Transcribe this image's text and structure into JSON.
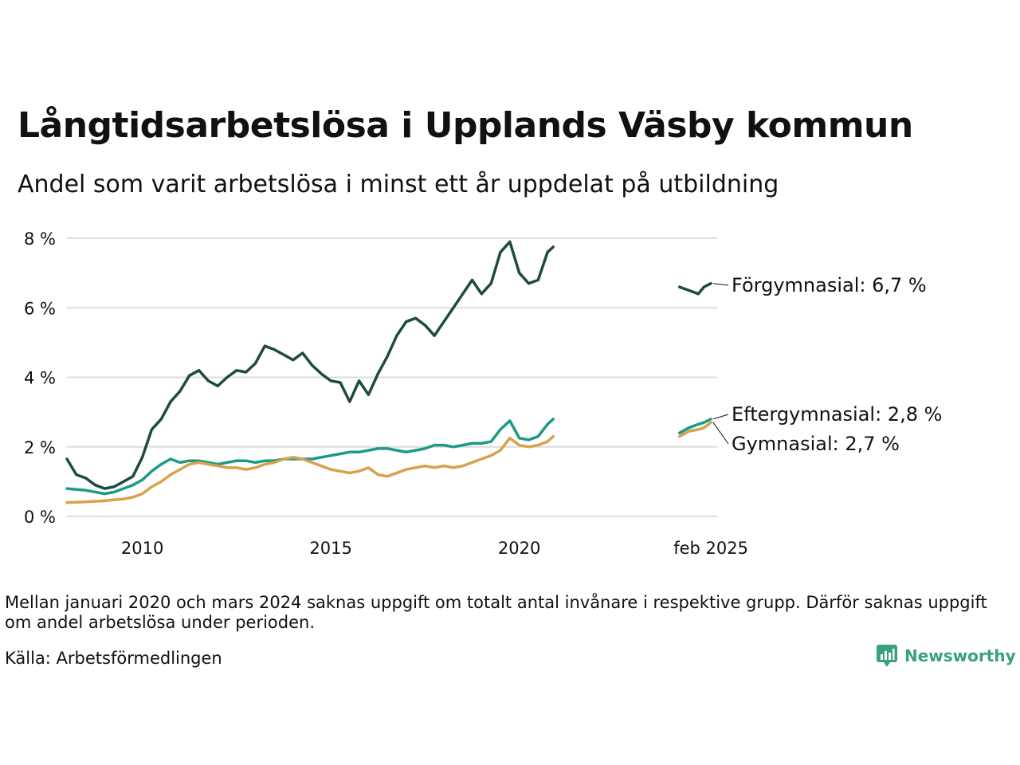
{
  "title": "Långtidsarbetslösa i Upplands Väsby kommun",
  "subtitle": "Andel som varit arbetslösa i minst ett år uppdelat på utbildning",
  "footnote": "Mellan januari 2020 och mars 2024 saknas uppgift om totalt antal invånare i respektive grupp. Därför saknas uppgift om andel arbetslösa under perioden.",
  "source": "Källa: Arbetsförmedlingen",
  "brand": "Newsworthy",
  "colors": {
    "forgymnasial": "#1e4a42",
    "eftergymnasial": "#1c9a86",
    "gymnasial": "#d7a24c",
    "grid": "#dcdcdc",
    "brand": "#3aa081"
  },
  "chart_data": {
    "type": "line",
    "x_range": [
      2008.0,
      2025.25
    ],
    "ylim": [
      0,
      8
    ],
    "y_ticks": [
      0,
      2,
      4,
      6,
      8
    ],
    "y_tick_labels": [
      "0 %",
      "2 %",
      "4 %",
      "6 %",
      "8 %"
    ],
    "x_ticks": [
      2010,
      2015,
      2020,
      2025.083
    ],
    "x_tick_labels": [
      "2010",
      "2015",
      "2020",
      "feb 2025"
    ],
    "grid": "horizontal",
    "series": [
      {
        "name": "Förgymnasial",
        "color_key": "forgymnasial",
        "end_label": "Förgymnasial: 6,7 %",
        "segments": [
          [
            [
              2008.0,
              1.65
            ],
            [
              2008.25,
              1.2
            ],
            [
              2008.5,
              1.1
            ],
            [
              2008.75,
              0.9
            ],
            [
              2009.0,
              0.8
            ],
            [
              2009.25,
              0.85
            ],
            [
              2009.5,
              1.0
            ],
            [
              2009.75,
              1.15
            ],
            [
              2010.0,
              1.7
            ],
            [
              2010.25,
              2.5
            ],
            [
              2010.5,
              2.8
            ],
            [
              2010.75,
              3.3
            ],
            [
              2011.0,
              3.6
            ],
            [
              2011.25,
              4.05
            ],
            [
              2011.5,
              4.2
            ],
            [
              2011.75,
              3.9
            ],
            [
              2012.0,
              3.75
            ],
            [
              2012.25,
              4.0
            ],
            [
              2012.5,
              4.2
            ],
            [
              2012.75,
              4.15
            ],
            [
              2013.0,
              4.4
            ],
            [
              2013.25,
              4.9
            ],
            [
              2013.5,
              4.8
            ],
            [
              2013.75,
              4.65
            ],
            [
              2014.0,
              4.5
            ],
            [
              2014.25,
              4.7
            ],
            [
              2014.5,
              4.35
            ],
            [
              2014.75,
              4.1
            ],
            [
              2015.0,
              3.9
            ],
            [
              2015.25,
              3.85
            ],
            [
              2015.5,
              3.3
            ],
            [
              2015.75,
              3.9
            ],
            [
              2016.0,
              3.5
            ],
            [
              2016.25,
              4.1
            ],
            [
              2016.5,
              4.6
            ],
            [
              2016.75,
              5.2
            ],
            [
              2017.0,
              5.6
            ],
            [
              2017.25,
              5.7
            ],
            [
              2017.5,
              5.5
            ],
            [
              2017.75,
              5.2
            ],
            [
              2018.0,
              5.6
            ],
            [
              2018.25,
              6.0
            ],
            [
              2018.5,
              6.4
            ],
            [
              2018.75,
              6.8
            ],
            [
              2019.0,
              6.4
            ],
            [
              2019.25,
              6.7
            ],
            [
              2019.5,
              7.6
            ],
            [
              2019.75,
              7.9
            ],
            [
              2020.0,
              7.0
            ],
            [
              2020.25,
              6.7
            ],
            [
              2020.5,
              6.8
            ],
            [
              2020.75,
              7.6
            ],
            [
              2020.9,
              7.75
            ]
          ],
          [
            [
              2024.25,
              6.6
            ],
            [
              2024.5,
              6.5
            ],
            [
              2024.75,
              6.4
            ],
            [
              2024.9,
              6.6
            ],
            [
              2025.08,
              6.7
            ]
          ]
        ]
      },
      {
        "name": "Eftergymnasial",
        "color_key": "eftergymnasial",
        "end_label": "Eftergymnasial: 2,8 %",
        "segments": [
          [
            [
              2008.0,
              0.8
            ],
            [
              2008.5,
              0.75
            ],
            [
              2009.0,
              0.65
            ],
            [
              2009.25,
              0.7
            ],
            [
              2009.5,
              0.8
            ],
            [
              2009.75,
              0.9
            ],
            [
              2010.0,
              1.05
            ],
            [
              2010.25,
              1.3
            ],
            [
              2010.5,
              1.5
            ],
            [
              2010.75,
              1.65
            ],
            [
              2011.0,
              1.55
            ],
            [
              2011.25,
              1.6
            ],
            [
              2011.5,
              1.6
            ],
            [
              2011.75,
              1.55
            ],
            [
              2012.0,
              1.5
            ],
            [
              2012.25,
              1.55
            ],
            [
              2012.5,
              1.6
            ],
            [
              2012.75,
              1.6
            ],
            [
              2013.0,
              1.55
            ],
            [
              2013.25,
              1.6
            ],
            [
              2013.5,
              1.6
            ],
            [
              2013.75,
              1.65
            ],
            [
              2014.0,
              1.65
            ],
            [
              2014.5,
              1.65
            ],
            [
              2014.75,
              1.7
            ],
            [
              2015.0,
              1.75
            ],
            [
              2015.25,
              1.8
            ],
            [
              2015.5,
              1.85
            ],
            [
              2015.75,
              1.85
            ],
            [
              2016.0,
              1.9
            ],
            [
              2016.25,
              1.95
            ],
            [
              2016.5,
              1.95
            ],
            [
              2016.75,
              1.9
            ],
            [
              2017.0,
              1.85
            ],
            [
              2017.25,
              1.9
            ],
            [
              2017.5,
              1.95
            ],
            [
              2017.75,
              2.05
            ],
            [
              2018.0,
              2.05
            ],
            [
              2018.25,
              2.0
            ],
            [
              2018.5,
              2.05
            ],
            [
              2018.75,
              2.1
            ],
            [
              2019.0,
              2.1
            ],
            [
              2019.25,
              2.15
            ],
            [
              2019.5,
              2.5
            ],
            [
              2019.75,
              2.75
            ],
            [
              2020.0,
              2.25
            ],
            [
              2020.25,
              2.2
            ],
            [
              2020.5,
              2.3
            ],
            [
              2020.75,
              2.65
            ],
            [
              2020.9,
              2.8
            ]
          ],
          [
            [
              2024.25,
              2.4
            ],
            [
              2024.5,
              2.55
            ],
            [
              2024.75,
              2.65
            ],
            [
              2024.9,
              2.7
            ],
            [
              2025.08,
              2.8
            ]
          ]
        ]
      },
      {
        "name": "Gymnasial",
        "color_key": "gymnasial",
        "end_label": "Gymnasial: 2,7 %",
        "segments": [
          [
            [
              2008.0,
              0.4
            ],
            [
              2008.5,
              0.42
            ],
            [
              2009.0,
              0.45
            ],
            [
              2009.25,
              0.48
            ],
            [
              2009.5,
              0.5
            ],
            [
              2009.75,
              0.55
            ],
            [
              2010.0,
              0.65
            ],
            [
              2010.25,
              0.85
            ],
            [
              2010.5,
              1.0
            ],
            [
              2010.75,
              1.2
            ],
            [
              2011.0,
              1.35
            ],
            [
              2011.25,
              1.5
            ],
            [
              2011.5,
              1.55
            ],
            [
              2011.75,
              1.5
            ],
            [
              2012.0,
              1.45
            ],
            [
              2012.25,
              1.4
            ],
            [
              2012.5,
              1.4
            ],
            [
              2012.75,
              1.35
            ],
            [
              2013.0,
              1.4
            ],
            [
              2013.25,
              1.5
            ],
            [
              2013.5,
              1.55
            ],
            [
              2013.75,
              1.65
            ],
            [
              2014.0,
              1.7
            ],
            [
              2014.25,
              1.65
            ],
            [
              2014.5,
              1.55
            ],
            [
              2014.75,
              1.45
            ],
            [
              2015.0,
              1.35
            ],
            [
              2015.25,
              1.3
            ],
            [
              2015.5,
              1.25
            ],
            [
              2015.75,
              1.3
            ],
            [
              2016.0,
              1.4
            ],
            [
              2016.25,
              1.2
            ],
            [
              2016.5,
              1.15
            ],
            [
              2016.75,
              1.25
            ],
            [
              2017.0,
              1.35
            ],
            [
              2017.25,
              1.4
            ],
            [
              2017.5,
              1.45
            ],
            [
              2017.75,
              1.4
            ],
            [
              2018.0,
              1.45
            ],
            [
              2018.25,
              1.4
            ],
            [
              2018.5,
              1.45
            ],
            [
              2018.75,
              1.55
            ],
            [
              2019.0,
              1.65
            ],
            [
              2019.25,
              1.75
            ],
            [
              2019.5,
              1.9
            ],
            [
              2019.75,
              2.25
            ],
            [
              2020.0,
              2.05
            ],
            [
              2020.25,
              2.0
            ],
            [
              2020.5,
              2.05
            ],
            [
              2020.75,
              2.15
            ],
            [
              2020.9,
              2.3
            ]
          ],
          [
            [
              2024.25,
              2.3
            ],
            [
              2024.5,
              2.45
            ],
            [
              2024.75,
              2.5
            ],
            [
              2024.9,
              2.55
            ],
            [
              2025.08,
              2.7
            ]
          ]
        ]
      }
    ]
  }
}
